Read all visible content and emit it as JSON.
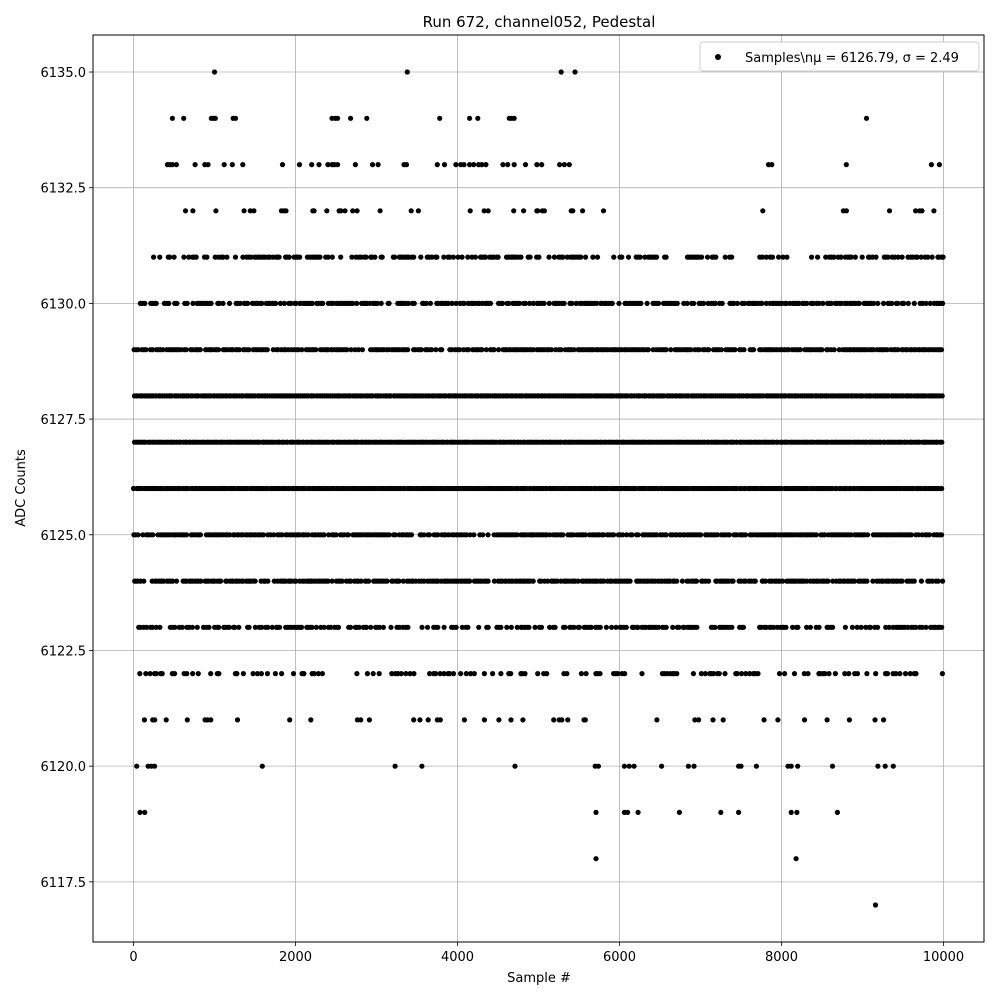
{
  "chart_data": {
    "type": "scatter",
    "title": "Run 672, channel052, Pedestal",
    "xlabel": "Sample #",
    "ylabel": "ADC Counts",
    "xlim": [
      -500,
      10500
    ],
    "ylim": [
      6116.2,
      6135.8
    ],
    "x_ticks": [
      0,
      2000,
      4000,
      6000,
      8000,
      10000
    ],
    "x_tick_labels": [
      "0",
      "2000",
      "4000",
      "6000",
      "8000",
      "10000"
    ],
    "y_ticks": [
      6117.5,
      6120.0,
      6122.5,
      6125.0,
      6127.5,
      6130.0,
      6132.5,
      6135.0
    ],
    "y_tick_labels": [
      "6117.5",
      "6120.0",
      "6122.5",
      "6125.0",
      "6127.5",
      "6130.0",
      "6132.5",
      "6135.0"
    ],
    "grid": true,
    "legend_position": "top-right",
    "marker_color": "#000000",
    "series": [
      {
        "name": "Samples\\nμ = 6126.79, σ = 2.49",
        "x_range": [
          0,
          9999
        ],
        "levels": [
          {
            "y": 6135,
            "x": [
              1000,
              3380,
              5280,
              5450
            ]
          },
          {
            "y": 6134,
            "x": [
              480,
              620,
              960,
              990,
              1010,
              1230,
              1260,
              2450,
              2490,
              2520,
              2680,
              2880,
              3780,
              4150,
              4250,
              4640,
              4670,
              4700,
              9050
            ]
          },
          {
            "y": 6133,
            "x": [
              420,
              450,
              480,
              530,
              760,
              880,
              920,
              1120,
              1220,
              1350,
              1840,
              2050,
              2200,
              2290,
              2400,
              2450,
              2480,
              2520,
              2740,
              2950,
              3020,
              3340,
              3370,
              3750,
              3840,
              3980,
              4040,
              4080,
              4150,
              4200,
              4260,
              4300,
              4350,
              4560,
              4620,
              4700,
              4840,
              4980,
              5040,
              5260,
              5320,
              5380,
              7840,
              7880,
              8800,
              9850,
              9950
            ]
          }
        ],
        "dense_rows": [
          {
            "y": 6132,
            "x_ranges": [
              [
                530,
                1500
              ],
              [
                1820,
                1920
              ],
              [
                2200,
                2860
              ],
              [
                2940,
                3050
              ],
              [
                3340,
                4020
              ],
              [
                4150,
                4400
              ],
              [
                4580,
                4830
              ],
              [
                4940,
                5620
              ],
              [
                5800,
                5960
              ],
              [
                7710,
                7840
              ],
              [
                8750,
                8860
              ],
              [
                9230,
                9950
              ]
            ],
            "density": 0.25
          },
          {
            "y": 6131,
            "x_ranges": [
              [
                220,
                5780
              ],
              [
                5900,
                6600
              ],
              [
                6830,
                7400
              ],
              [
                7680,
                8060
              ],
              [
                8360,
                9600
              ],
              [
                9620,
                9999
              ]
            ],
            "density": 0.55
          },
          {
            "y": 6130,
            "x_ranges": [
              [
                80,
                9999
              ]
            ],
            "density": 0.7
          },
          {
            "y": 6129,
            "x_ranges": [
              [
                0,
                9999
              ]
            ],
            "density": 0.85
          },
          {
            "y": 6128,
            "x_ranges": [
              [
                0,
                9999
              ]
            ],
            "density": 1.0
          },
          {
            "y": 6127,
            "x_ranges": [
              [
                0,
                9999
              ]
            ],
            "density": 1.0
          },
          {
            "y": 6126,
            "x_ranges": [
              [
                0,
                9999
              ]
            ],
            "density": 1.0
          },
          {
            "y": 6125,
            "x_ranges": [
              [
                0,
                9999
              ]
            ],
            "density": 0.85
          },
          {
            "y": 6124,
            "x_ranges": [
              [
                0,
                9999
              ]
            ],
            "density": 0.8
          },
          {
            "y": 6123,
            "x_ranges": [
              [
                0,
                9999
              ]
            ],
            "density": 0.55
          },
          {
            "y": 6122,
            "x_ranges": [
              [
                0,
                9999
              ]
            ],
            "density": 0.3
          },
          {
            "y": 6121,
            "x_ranges": [
              [
                0,
                9650
              ]
            ],
            "density": 0.15
          }
        ],
        "sparse_points": [
          {
            "y": 6120,
            "x": [
              40,
              180,
              220,
              260,
              1590,
              3230,
              3560,
              4710,
              5700,
              5740,
              6060,
              6120,
              6180,
              6520,
              6850,
              6920,
              7470,
              7500,
              7690,
              8080,
              8120,
              8200,
              8630,
              9190,
              9280,
              9380
            ]
          },
          {
            "y": 6119,
            "x": [
              80,
              140,
              5710,
              6060,
              6100,
              6230,
              6740,
              7250,
              7470,
              8120,
              8190,
              8690
            ]
          },
          {
            "y": 6118,
            "x": [
              5710,
              8180
            ]
          },
          {
            "y": 6117,
            "x": [
              9160
            ]
          }
        ]
      }
    ]
  }
}
